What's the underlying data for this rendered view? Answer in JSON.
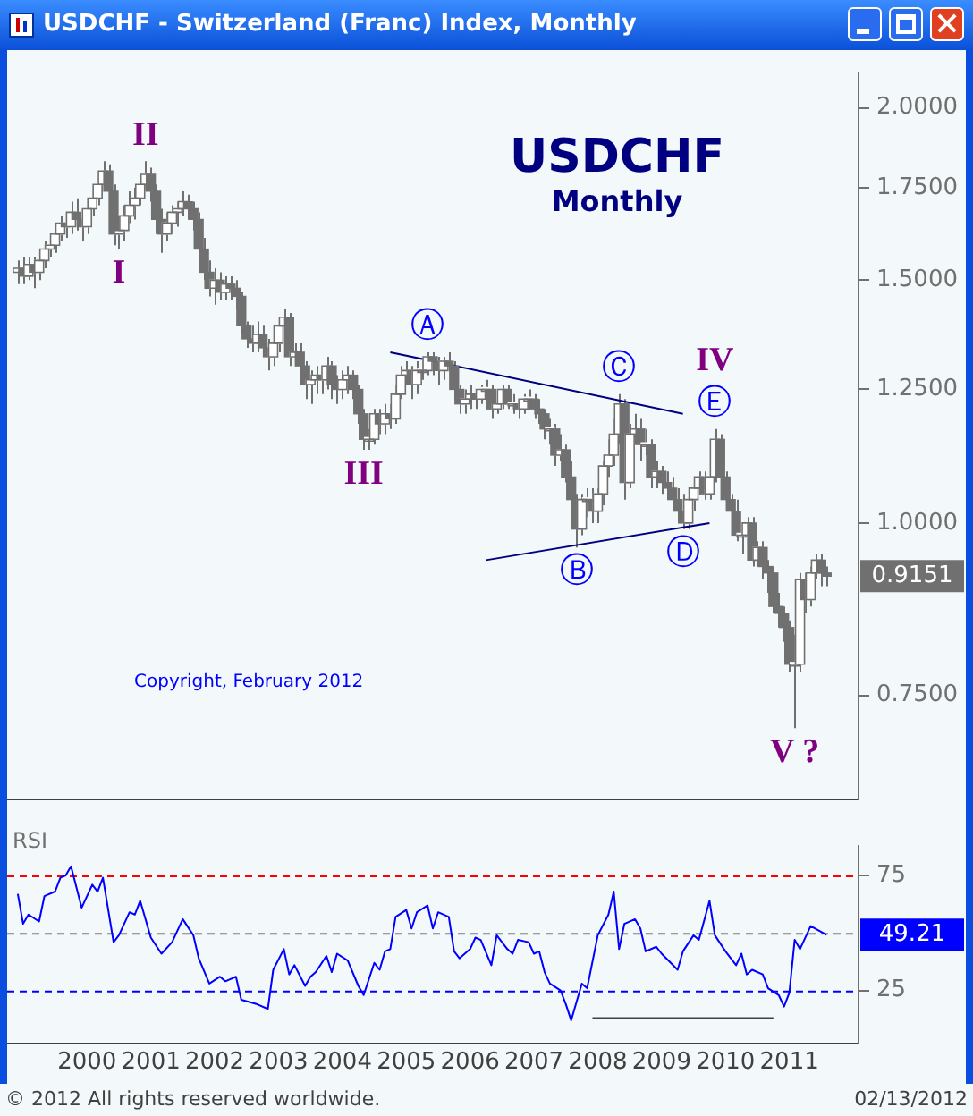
{
  "chart_data": [
    {
      "type": "candlestick",
      "title": "USDCHF - Switzerland (Franc) Index, Monthly",
      "subtitle": "USDCHF",
      "color": "#707070",
      "log": true,
      "grid": false,
      "marker": "none",
      "tick_labels": "y",
      "xlim": [
        "1999-04",
        "2012-08"
      ],
      "ylim": [
        0.63,
        2.12
      ],
      "yticks": [
        {
          "value": 2,
          "label": "2.0000"
        },
        {
          "value": 1.75,
          "label": "1.7500"
        },
        {
          "value": 1.5,
          "label": "1.5000"
        },
        {
          "value": 1.25,
          "label": "1.2500"
        },
        {
          "value": 1,
          "label": "1.0000"
        },
        {
          "value": 0.75,
          "label": "0.7500"
        }
      ],
      "x": [
        "1999-06",
        "1999-07",
        "1999-08",
        "1999-09",
        "1999-10",
        "1999-11",
        "1999-12",
        "2000-01",
        "2000-02",
        "2000-03",
        "2000-04",
        "2000-05",
        "2000-06",
        "2000-07",
        "2000-08",
        "2000-09",
        "2000-10",
        "2000-11",
        "2000-12",
        "2001-01",
        "2001-02",
        "2001-03",
        "2001-04",
        "2001-05",
        "2001-06",
        "2001-07",
        "2001-08",
        "2001-09",
        "2001-10",
        "2001-11",
        "2001-12",
        "2002-01",
        "2002-02",
        "2002-03",
        "2002-04",
        "2002-05",
        "2002-06",
        "2002-07",
        "2002-08",
        "2002-09",
        "2002-10",
        "2002-11",
        "2002-12",
        "2003-01",
        "2003-02",
        "2003-03",
        "2003-04",
        "2003-05",
        "2003-06",
        "2003-07",
        "2003-08",
        "2003-09",
        "2003-10",
        "2003-11",
        "2003-12",
        "2004-01",
        "2004-02",
        "2004-03",
        "2004-04",
        "2004-05",
        "2004-06",
        "2004-07",
        "2004-08",
        "2004-09",
        "2004-10",
        "2004-11",
        "2004-12",
        "2005-01",
        "2005-02",
        "2005-03",
        "2005-04",
        "2005-05",
        "2005-06",
        "2005-07",
        "2005-08",
        "2005-09",
        "2005-10",
        "2005-11",
        "2005-12",
        "2006-01",
        "2006-02",
        "2006-03",
        "2006-04",
        "2006-05",
        "2006-06",
        "2006-07",
        "2006-08",
        "2006-09",
        "2006-10",
        "2006-11",
        "2006-12",
        "2007-01",
        "2007-02",
        "2007-03",
        "2007-04",
        "2007-05",
        "2007-06",
        "2007-07",
        "2007-08",
        "2007-09",
        "2007-10",
        "2007-11",
        "2007-12",
        "2008-01",
        "2008-02",
        "2008-03",
        "2008-04",
        "2008-05",
        "2008-06",
        "2008-07",
        "2008-08",
        "2008-09",
        "2008-10",
        "2008-11",
        "2008-12",
        "2009-01",
        "2009-02",
        "2009-03",
        "2009-04",
        "2009-05",
        "2009-06",
        "2009-07",
        "2009-08",
        "2009-09",
        "2009-10",
        "2009-11",
        "2009-12",
        "2010-01",
        "2010-02",
        "2010-03",
        "2010-04",
        "2010-05",
        "2010-06",
        "2010-07",
        "2010-08",
        "2010-09",
        "2010-10",
        "2010-11",
        "2010-12",
        "2011-01",
        "2011-02",
        "2011-03",
        "2011-04",
        "2011-05",
        "2011-06",
        "2011-07",
        "2011-08",
        "2011-09",
        "2011-10",
        "2011-11",
        "2011-12",
        "2012-01",
        "2012-02"
      ],
      "ohlc": [
        [
          1.52,
          1.55,
          1.49,
          1.53
        ],
        [
          1.53,
          1.56,
          1.49,
          1.51
        ],
        [
          1.51,
          1.56,
          1.5,
          1.54
        ],
        [
          1.54,
          1.56,
          1.48,
          1.52
        ],
        [
          1.52,
          1.57,
          1.5,
          1.55
        ],
        [
          1.55,
          1.6,
          1.53,
          1.58
        ],
        [
          1.58,
          1.61,
          1.56,
          1.59
        ],
        [
          1.59,
          1.64,
          1.57,
          1.62
        ],
        [
          1.62,
          1.67,
          1.6,
          1.65
        ],
        [
          1.65,
          1.68,
          1.61,
          1.64
        ],
        [
          1.64,
          1.71,
          1.62,
          1.68
        ],
        [
          1.68,
          1.72,
          1.63,
          1.66
        ],
        [
          1.66,
          1.68,
          1.6,
          1.64
        ],
        [
          1.64,
          1.71,
          1.62,
          1.69
        ],
        [
          1.69,
          1.75,
          1.67,
          1.72
        ],
        [
          1.72,
          1.79,
          1.7,
          1.76
        ],
        [
          1.76,
          1.83,
          1.74,
          1.8
        ],
        [
          1.8,
          1.82,
          1.71,
          1.74
        ],
        [
          1.74,
          1.76,
          1.59,
          1.62
        ],
        [
          1.62,
          1.67,
          1.58,
          1.63
        ],
        [
          1.63,
          1.7,
          1.6,
          1.67
        ],
        [
          1.67,
          1.74,
          1.65,
          1.7
        ],
        [
          1.7,
          1.75,
          1.66,
          1.72
        ],
        [
          1.72,
          1.79,
          1.7,
          1.76
        ],
        [
          1.76,
          1.83,
          1.74,
          1.79
        ],
        [
          1.79,
          1.81,
          1.71,
          1.74
        ],
        [
          1.74,
          1.76,
          1.62,
          1.66
        ],
        [
          1.66,
          1.69,
          1.57,
          1.62
        ],
        [
          1.62,
          1.68,
          1.6,
          1.65
        ],
        [
          1.65,
          1.7,
          1.62,
          1.68
        ],
        [
          1.68,
          1.71,
          1.64,
          1.69
        ],
        [
          1.69,
          1.74,
          1.67,
          1.71
        ],
        [
          1.71,
          1.73,
          1.66,
          1.69
        ],
        [
          1.69,
          1.71,
          1.63,
          1.66
        ],
        [
          1.66,
          1.68,
          1.56,
          1.58
        ],
        [
          1.58,
          1.61,
          1.5,
          1.52
        ],
        [
          1.52,
          1.55,
          1.46,
          1.48
        ],
        [
          1.48,
          1.53,
          1.44,
          1.5
        ],
        [
          1.5,
          1.52,
          1.45,
          1.47
        ],
        [
          1.47,
          1.51,
          1.45,
          1.49
        ],
        [
          1.49,
          1.51,
          1.45,
          1.48
        ],
        [
          1.48,
          1.5,
          1.43,
          1.46
        ],
        [
          1.46,
          1.47,
          1.37,
          1.39
        ],
        [
          1.39,
          1.4,
          1.34,
          1.36
        ],
        [
          1.36,
          1.39,
          1.33,
          1.35
        ],
        [
          1.35,
          1.4,
          1.33,
          1.37
        ],
        [
          1.37,
          1.39,
          1.32,
          1.34
        ],
        [
          1.34,
          1.36,
          1.29,
          1.32
        ],
        [
          1.32,
          1.37,
          1.3,
          1.35
        ],
        [
          1.35,
          1.41,
          1.33,
          1.39
        ],
        [
          1.39,
          1.43,
          1.37,
          1.41
        ],
        [
          1.41,
          1.42,
          1.3,
          1.32
        ],
        [
          1.32,
          1.35,
          1.3,
          1.33
        ],
        [
          1.33,
          1.35,
          1.28,
          1.3
        ],
        [
          1.3,
          1.31,
          1.23,
          1.26
        ],
        [
          1.26,
          1.29,
          1.22,
          1.27
        ],
        [
          1.27,
          1.3,
          1.24,
          1.28
        ],
        [
          1.28,
          1.3,
          1.24,
          1.27
        ],
        [
          1.27,
          1.32,
          1.25,
          1.3
        ],
        [
          1.3,
          1.31,
          1.23,
          1.26
        ],
        [
          1.26,
          1.28,
          1.22,
          1.25
        ],
        [
          1.25,
          1.29,
          1.23,
          1.27
        ],
        [
          1.27,
          1.3,
          1.24,
          1.28
        ],
        [
          1.28,
          1.29,
          1.23,
          1.25
        ],
        [
          1.25,
          1.26,
          1.18,
          1.2
        ],
        [
          1.2,
          1.21,
          1.13,
          1.15
        ],
        [
          1.15,
          1.17,
          1.13,
          1.15
        ],
        [
          1.15,
          1.21,
          1.14,
          1.2
        ],
        [
          1.2,
          1.21,
          1.16,
          1.18
        ],
        [
          1.18,
          1.22,
          1.16,
          1.2
        ],
        [
          1.2,
          1.22,
          1.17,
          1.19
        ],
        [
          1.19,
          1.26,
          1.18,
          1.24
        ],
        [
          1.24,
          1.3,
          1.23,
          1.28
        ],
        [
          1.28,
          1.31,
          1.26,
          1.29
        ],
        [
          1.29,
          1.3,
          1.23,
          1.26
        ],
        [
          1.26,
          1.31,
          1.24,
          1.29
        ],
        [
          1.29,
          1.31,
          1.27,
          1.29
        ],
        [
          1.29,
          1.33,
          1.28,
          1.32
        ],
        [
          1.32,
          1.33,
          1.28,
          1.31
        ],
        [
          1.31,
          1.32,
          1.26,
          1.29
        ],
        [
          1.29,
          1.32,
          1.27,
          1.31
        ],
        [
          1.31,
          1.33,
          1.29,
          1.3
        ],
        [
          1.3,
          1.31,
          1.23,
          1.25
        ],
        [
          1.25,
          1.26,
          1.2,
          1.22
        ],
        [
          1.22,
          1.25,
          1.2,
          1.23
        ],
        [
          1.23,
          1.26,
          1.21,
          1.24
        ],
        [
          1.24,
          1.25,
          1.21,
          1.23
        ],
        [
          1.23,
          1.26,
          1.22,
          1.25
        ],
        [
          1.25,
          1.27,
          1.23,
          1.25
        ],
        [
          1.25,
          1.26,
          1.19,
          1.21
        ],
        [
          1.21,
          1.24,
          1.2,
          1.22
        ],
        [
          1.22,
          1.26,
          1.21,
          1.25
        ],
        [
          1.25,
          1.26,
          1.21,
          1.22
        ],
        [
          1.22,
          1.24,
          1.2,
          1.22
        ],
        [
          1.22,
          1.23,
          1.19,
          1.21
        ],
        [
          1.21,
          1.24,
          1.2,
          1.23
        ],
        [
          1.23,
          1.25,
          1.21,
          1.23
        ],
        [
          1.23,
          1.24,
          1.19,
          1.21
        ],
        [
          1.21,
          1.23,
          1.18,
          1.2
        ],
        [
          1.2,
          1.21,
          1.15,
          1.17
        ],
        [
          1.17,
          1.19,
          1.14,
          1.17
        ],
        [
          1.17,
          1.18,
          1.1,
          1.12
        ],
        [
          1.12,
          1.16,
          1.11,
          1.13
        ],
        [
          1.13,
          1.14,
          1.07,
          1.08
        ],
        [
          1.08,
          1.11,
          1.03,
          1.04
        ],
        [
          1.04,
          1.05,
          0.96,
          0.99
        ],
        [
          0.99,
          1.05,
          0.98,
          1.04
        ],
        [
          1.04,
          1.06,
          1.01,
          1.04
        ],
        [
          1.04,
          1.06,
          1.0,
          1.02
        ],
        [
          1.02,
          1.06,
          1.0,
          1.05
        ],
        [
          1.05,
          1.11,
          1.03,
          1.1
        ],
        [
          1.1,
          1.15,
          1.08,
          1.12
        ],
        [
          1.12,
          1.19,
          1.1,
          1.16
        ],
        [
          1.16,
          1.24,
          1.14,
          1.22
        ],
        [
          1.22,
          1.23,
          1.04,
          1.07
        ],
        [
          1.07,
          1.18,
          1.06,
          1.16
        ],
        [
          1.16,
          1.2,
          1.14,
          1.17
        ],
        [
          1.17,
          1.19,
          1.11,
          1.14
        ],
        [
          1.14,
          1.17,
          1.12,
          1.14
        ],
        [
          1.14,
          1.15,
          1.06,
          1.08
        ],
        [
          1.08,
          1.11,
          1.06,
          1.09
        ],
        [
          1.09,
          1.1,
          1.05,
          1.07
        ],
        [
          1.07,
          1.09,
          1.04,
          1.06
        ],
        [
          1.06,
          1.08,
          1.03,
          1.04
        ],
        [
          1.04,
          1.06,
          1.01,
          1.02
        ],
        [
          1.02,
          1.05,
          0.99,
          1.0
        ],
        [
          1.0,
          1.05,
          0.99,
          1.04
        ],
        [
          1.04,
          1.07,
          1.02,
          1.06
        ],
        [
          1.06,
          1.09,
          1.05,
          1.08
        ],
        [
          1.08,
          1.09,
          1.04,
          1.05
        ],
        [
          1.05,
          1.09,
          1.04,
          1.08
        ],
        [
          1.08,
          1.17,
          1.07,
          1.15
        ],
        [
          1.15,
          1.16,
          1.07,
          1.08
        ],
        [
          1.08,
          1.09,
          1.03,
          1.04
        ],
        [
          1.04,
          1.05,
          1.0,
          1.02
        ],
        [
          1.02,
          1.04,
          0.97,
          0.98
        ],
        [
          0.98,
          1.0,
          0.95,
          0.98
        ],
        [
          0.98,
          1.01,
          0.97,
          1.0
        ],
        [
          1.0,
          1.01,
          0.93,
          0.94
        ],
        [
          0.94,
          0.97,
          0.93,
          0.96
        ],
        [
          0.96,
          0.97,
          0.91,
          0.93
        ],
        [
          0.93,
          0.94,
          0.89,
          0.92
        ],
        [
          0.92,
          0.93,
          0.86,
          0.87
        ],
        [
          0.87,
          0.89,
          0.84,
          0.86
        ],
        [
          0.86,
          0.87,
          0.82,
          0.84
        ],
        [
          0.84,
          0.85,
          0.78,
          0.79
        ],
        [
          0.79,
          0.83,
          0.71,
          0.79
        ],
        [
          0.79,
          0.92,
          0.78,
          0.91
        ],
        [
          0.91,
          0.92,
          0.86,
          0.88
        ],
        [
          0.88,
          0.93,
          0.87,
          0.92
        ],
        [
          0.92,
          0.95,
          0.91,
          0.94
        ],
        [
          0.94,
          0.95,
          0.9,
          0.92
        ],
        [
          0.92,
          0.93,
          0.9,
          0.9151
        ]
      ],
      "colors": [
        "#ffffff",
        "#707070",
        "#ffffff",
        "#707070",
        "#ffffff",
        "#ffffff",
        "#ffffff",
        "#ffffff",
        "#ffffff",
        "#707070",
        "#ffffff",
        "#707070",
        "#707070",
        "#ffffff",
        "#ffffff",
        "#ffffff",
        "#ffffff",
        "#707070",
        "#707070",
        "#ffffff",
        "#ffffff",
        "#ffffff",
        "#ffffff",
        "#ffffff",
        "#ffffff",
        "#707070",
        "#707070",
        "#707070",
        "#ffffff",
        "#ffffff",
        "#ffffff",
        "#ffffff",
        "#707070",
        "#707070",
        "#707070",
        "#707070",
        "#707070",
        "#ffffff",
        "#707070",
        "#ffffff",
        "#707070",
        "#707070",
        "#707070",
        "#707070",
        "#707070",
        "#ffffff",
        "#707070",
        "#707070",
        "#ffffff",
        "#ffffff",
        "#ffffff",
        "#707070",
        "#ffffff",
        "#707070",
        "#707070",
        "#ffffff",
        "#ffffff",
        "#707070",
        "#ffffff",
        "#707070",
        "#707070",
        "#ffffff",
        "#ffffff",
        "#707070",
        "#707070",
        "#707070",
        "#ffffff",
        "#ffffff",
        "#707070",
        "#ffffff",
        "#707070",
        "#ffffff",
        "#ffffff",
        "#ffffff",
        "#707070",
        "#ffffff",
        "#ffffff",
        "#ffffff",
        "#707070",
        "#707070",
        "#ffffff",
        "#707070",
        "#707070",
        "#707070",
        "#ffffff",
        "#ffffff",
        "#707070",
        "#ffffff",
        "#ffffff",
        "#707070",
        "#ffffff",
        "#ffffff",
        "#707070",
        "#ffffff",
        "#707070",
        "#ffffff",
        "#ffffff",
        "#707070",
        "#707070",
        "#707070",
        "#ffffff",
        "#707070",
        "#ffffff",
        "#707070",
        "#707070",
        "#707070",
        "#ffffff",
        "#ffffff",
        "#707070",
        "#ffffff",
        "#ffffff",
        "#ffffff",
        "#ffffff",
        "#ffffff",
        "#707070",
        "#ffffff",
        "#ffffff",
        "#707070",
        "#ffffff",
        "#707070",
        "#ffffff",
        "#707070",
        "#707070",
        "#707070",
        "#707070",
        "#707070",
        "#ffffff",
        "#ffffff",
        "#ffffff",
        "#707070",
        "#ffffff",
        "#ffffff",
        "#707070",
        "#707070",
        "#707070",
        "#707070",
        "#ffffff",
        "#ffffff",
        "#707070",
        "#ffffff",
        "#707070",
        "#707070",
        "#707070",
        "#707070",
        "#707070",
        "#707070",
        "#ffffff",
        "#ffffff",
        "#707070",
        "#ffffff",
        "#ffffff",
        "#707070",
        "#707070"
      ],
      "series": [
        {
          "type": "line",
          "color": "#000080",
          "x": [
            "2005-04",
            "2009-11"
          ],
          "values": [
            1.33,
            1.2
          ]
        },
        {
          "type": "line",
          "color": "#000080",
          "x": [
            "2006-10",
            "2010-04"
          ],
          "values": [
            0.94,
            1.0
          ]
        }
      ],
      "annotations": [
        "Monthly",
        "Copyright, February 2012",
        {
          "text": "I",
          "x": "2001-01",
          "y": 1.58
        },
        {
          "text": "II",
          "x": "2001-06",
          "y": 1.83
        },
        {
          "text": "III",
          "x": "2004-11",
          "y": 1.13
        },
        {
          "text": "Ⓐ",
          "x": "2005-11",
          "y": 1.33
        },
        {
          "text": "Ⓑ",
          "x": "2008-03",
          "y": 0.96
        },
        {
          "text": "Ⓒ",
          "x": "2008-11",
          "y": 1.24
        },
        {
          "text": "Ⓓ",
          "x": "2009-11",
          "y": 0.99
        },
        {
          "text": "Ⓔ",
          "x": "2010-05",
          "y": 1.17
        },
        {
          "text": "IV",
          "x": "2010-05",
          "y": 1.17
        },
        {
          "text": "V ?",
          "x": "2011-08",
          "y": 0.71
        },
        {
          "text": "0.9151",
          "x": "2012-02",
          "y": 0.9151
        }
      ]
    },
    {
      "type": "line",
      "title": "RSI",
      "grid": false,
      "marker": "none",
      "xlim": [
        "1999-04",
        "2012-08"
      ],
      "ylim": [
        2,
        88
      ],
      "yticks": [
        25,
        75
      ],
      "xticks": [
        {
          "value": "2000-07",
          "label": "2000"
        },
        {
          "value": "2001-07",
          "label": "2001"
        },
        {
          "value": "2002-07",
          "label": "2002"
        },
        {
          "value": "2003-07",
          "label": "2003"
        },
        {
          "value": "2004-07",
          "label": "2004"
        },
        {
          "value": "2005-07",
          "label": "2005"
        },
        {
          "value": "2006-07",
          "label": "2006"
        },
        {
          "value": "2007-07",
          "label": "2007"
        },
        {
          "value": "2008-07",
          "label": "2008"
        },
        {
          "value": "2009-07",
          "label": "2009"
        },
        {
          "value": "2010-07",
          "label": "2010"
        },
        {
          "value": "2011-07",
          "label": "2011"
        }
      ],
      "ref_lines": [
        {
          "axis": "y",
          "value": 75,
          "color": "#ff0000",
          "line_style": "dashed"
        },
        {
          "axis": "y",
          "value": 50,
          "color": "#808080",
          "line_style": "dashed"
        },
        {
          "axis": "y",
          "value": 25,
          "color": "#0000ff",
          "line_style": "dashed"
        }
      ],
      "series": [
        {
          "color": "#0000ff",
          "x": [
            "1999-06",
            "1999-07",
            "1999-08",
            "1999-10",
            "1999-11",
            "2000-01",
            "2000-02",
            "2000-03",
            "2000-04",
            "2000-06",
            "2000-08",
            "2000-09",
            "2000-10",
            "2000-12",
            "2001-01",
            "2001-03",
            "2001-04",
            "2001-05",
            "2001-07",
            "2001-09",
            "2001-11",
            "2002-01",
            "2002-03",
            "2002-04",
            "2002-06",
            "2002-08",
            "2002-09",
            "2002-11",
            "2002-12",
            "2003-03",
            "2003-05",
            "2003-06",
            "2003-08",
            "2003-09",
            "2003-10",
            "2003-12",
            "2004-01",
            "2004-02",
            "2004-04",
            "2004-05",
            "2004-06",
            "2004-08",
            "2004-10",
            "2004-11",
            "2005-01",
            "2005-02",
            "2005-03",
            "2005-04",
            "2005-05",
            "2005-07",
            "2005-08",
            "2005-09",
            "2005-11",
            "2005-12",
            "2006-01",
            "2006-03",
            "2006-04",
            "2006-05",
            "2006-07",
            "2006-08",
            "2006-09",
            "2006-11",
            "2006-12",
            "2007-02",
            "2007-03",
            "2007-04",
            "2007-06",
            "2007-07",
            "2007-08",
            "2007-09",
            "2007-10",
            "2007-12",
            "2008-01",
            "2008-02",
            "2008-04",
            "2008-05",
            "2008-07",
            "2008-09",
            "2008-10",
            "2008-11",
            "2008-12",
            "2009-02",
            "2009-03",
            "2009-04",
            "2009-06",
            "2009-07",
            "2009-10",
            "2009-11",
            "2010-01",
            "2010-02",
            "2010-04",
            "2010-05",
            "2010-07",
            "2010-09",
            "2010-10",
            "2010-11",
            "2010-12",
            "2011-02",
            "2011-03",
            "2011-05",
            "2011-06",
            "2011-07",
            "2011-08",
            "2011-09",
            "2011-11",
            "2012-02"
          ],
          "values": [
            67,
            54,
            58,
            55,
            66,
            68,
            74,
            75,
            79,
            61,
            71,
            68,
            74,
            46,
            49,
            59,
            58,
            64,
            48,
            41,
            46,
            56,
            49,
            39,
            28,
            31,
            29,
            31,
            21,
            19,
            17,
            34,
            43,
            32,
            36,
            27,
            31,
            33,
            40,
            33,
            41,
            38,
            27,
            23,
            37,
            34,
            42,
            43,
            57,
            60,
            52,
            59,
            62,
            52,
            59,
            57,
            42,
            39,
            43,
            48,
            47,
            36,
            49,
            43,
            41,
            47,
            46,
            41,
            42,
            33,
            28,
            25,
            19,
            12,
            28,
            26,
            49,
            58,
            68,
            43,
            54,
            56,
            52,
            42,
            44,
            41,
            34,
            42,
            49,
            47,
            64,
            49,
            42,
            36,
            41,
            32,
            34,
            32,
            26,
            23,
            18,
            24,
            47,
            43,
            53,
            49.21
          ]
        },
        {
          "color": "#404040",
          "x": [
            "2008-06",
            "2011-04"
          ],
          "values": [
            13,
            13
          ]
        }
      ],
      "annotations": [
        {
          "text": "49.21",
          "x": "2012-02",
          "y": 49.21
        },
        "© 2012 All rights reserved worldwide.",
        "02/13/2012"
      ]
    }
  ]
}
